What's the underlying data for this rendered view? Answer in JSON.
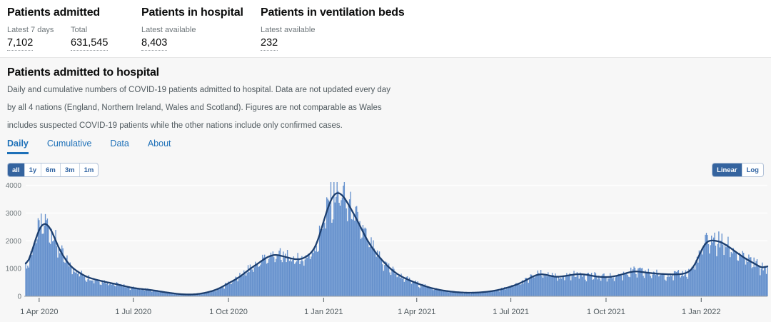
{
  "colors": {
    "page_background": "#ffffff",
    "panel_background": "#f7f7f7",
    "accent_blue": "#1d70b8",
    "button_active_bg": "#35649f",
    "bar": "#5e8bc9",
    "bar_light": "#8fb0dd",
    "line": "#1c3e6e"
  },
  "stats": {
    "cards": [
      {
        "title": "Patients admitted",
        "metrics": [
          {
            "label": "Latest 7 days",
            "value": "7,102"
          },
          {
            "label": "Total",
            "value": "631,545"
          }
        ]
      },
      {
        "title": "Patients in hospital",
        "metrics": [
          {
            "label": "Latest available",
            "value": "8,403"
          }
        ]
      },
      {
        "title": "Patients in ventilation beds",
        "metrics": [
          {
            "label": "Latest available",
            "value": "232"
          }
        ]
      }
    ]
  },
  "section": {
    "title": "Patients admitted to hospital",
    "description": "Daily and cumulative numbers of COVID-19 patients admitted to hospital. Data are not updated every day by all 4 nations (England, Northern Ireland, Wales and Scotland). Figures are not comparable as Wales includes suspected COVID-19 patients while the other nations include only confirmed cases.",
    "tabs": [
      {
        "label": "Daily",
        "active": true
      },
      {
        "label": "Cumulative",
        "active": false
      },
      {
        "label": "Data",
        "active": false
      },
      {
        "label": "About",
        "active": false
      }
    ],
    "range_buttons": [
      {
        "label": "all",
        "active": true
      },
      {
        "label": "1y",
        "active": false
      },
      {
        "label": "6m",
        "active": false
      },
      {
        "label": "3m",
        "active": false
      },
      {
        "label": "1m",
        "active": false
      }
    ],
    "scale_buttons": [
      {
        "label": "Linear",
        "active": true
      },
      {
        "label": "Log",
        "active": false
      }
    ]
  },
  "chart_data": {
    "type": "bar",
    "title": "Daily",
    "ylim": [
      0,
      4000
    ],
    "yticks": [
      0,
      1000,
      2000,
      3000,
      4000
    ],
    "date_range": [
      "2020-03-19",
      "2022-03-06"
    ],
    "x_ticks": [
      {
        "date": "2020-04-01",
        "label": "1 Apr 2020"
      },
      {
        "date": "2020-07-01",
        "label": "1 Jul 2020"
      },
      {
        "date": "2020-10-01",
        "label": "1 Oct 2020"
      },
      {
        "date": "2021-01-01",
        "label": "1 Jan 2021"
      },
      {
        "date": "2021-04-01",
        "label": "1 Apr 2021"
      },
      {
        "date": "2021-07-01",
        "label": "1 Jul 2021"
      },
      {
        "date": "2021-10-01",
        "label": "1 Oct 2021"
      },
      {
        "date": "2022-01-01",
        "label": "1 Jan 2022"
      }
    ],
    "series": [
      {
        "name": "daily-admissions",
        "type": "bar"
      },
      {
        "name": "7-day-rolling-average",
        "type": "line",
        "points": [
          [
            "2020-03-19",
            1050
          ],
          [
            "2020-03-23",
            1400
          ],
          [
            "2020-03-27",
            1850
          ],
          [
            "2020-03-31",
            2350
          ],
          [
            "2020-04-04",
            2600
          ],
          [
            "2020-04-07",
            2650
          ],
          [
            "2020-04-10",
            2550
          ],
          [
            "2020-04-14",
            2300
          ],
          [
            "2020-04-18",
            1900
          ],
          [
            "2020-04-22",
            1600
          ],
          [
            "2020-04-26",
            1350
          ],
          [
            "2020-04-30",
            1150
          ],
          [
            "2020-05-04",
            1000
          ],
          [
            "2020-05-08",
            900
          ],
          [
            "2020-05-12",
            800
          ],
          [
            "2020-05-16",
            720
          ],
          [
            "2020-05-20",
            660
          ],
          [
            "2020-05-24",
            620
          ],
          [
            "2020-05-28",
            580
          ],
          [
            "2020-06-01",
            545
          ],
          [
            "2020-06-05",
            510
          ],
          [
            "2020-06-09",
            480
          ],
          [
            "2020-06-13",
            450
          ],
          [
            "2020-06-17",
            415
          ],
          [
            "2020-06-21",
            380
          ],
          [
            "2020-06-25",
            345
          ],
          [
            "2020-06-29",
            315
          ],
          [
            "2020-07-03",
            290
          ],
          [
            "2020-07-07",
            270
          ],
          [
            "2020-07-11",
            255
          ],
          [
            "2020-07-15",
            240
          ],
          [
            "2020-07-19",
            220
          ],
          [
            "2020-07-23",
            200
          ],
          [
            "2020-07-27",
            175
          ],
          [
            "2020-07-31",
            150
          ],
          [
            "2020-08-04",
            130
          ],
          [
            "2020-08-08",
            110
          ],
          [
            "2020-08-12",
            90
          ],
          [
            "2020-08-16",
            75
          ],
          [
            "2020-08-20",
            68
          ],
          [
            "2020-08-24",
            65
          ],
          [
            "2020-08-28",
            68
          ],
          [
            "2020-09-01",
            80
          ],
          [
            "2020-09-05",
            100
          ],
          [
            "2020-09-09",
            130
          ],
          [
            "2020-09-13",
            165
          ],
          [
            "2020-09-17",
            210
          ],
          [
            "2020-09-21",
            270
          ],
          [
            "2020-09-25",
            340
          ],
          [
            "2020-09-29",
            430
          ],
          [
            "2020-10-03",
            510
          ],
          [
            "2020-10-07",
            590
          ],
          [
            "2020-10-11",
            680
          ],
          [
            "2020-10-15",
            790
          ],
          [
            "2020-10-19",
            910
          ],
          [
            "2020-10-23",
            1020
          ],
          [
            "2020-10-27",
            1120
          ],
          [
            "2020-10-31",
            1220
          ],
          [
            "2020-11-04",
            1330
          ],
          [
            "2020-11-08",
            1420
          ],
          [
            "2020-11-12",
            1480
          ],
          [
            "2020-11-16",
            1500
          ],
          [
            "2020-11-20",
            1470
          ],
          [
            "2020-11-24",
            1430
          ],
          [
            "2020-11-28",
            1390
          ],
          [
            "2020-12-02",
            1350
          ],
          [
            "2020-12-06",
            1330
          ],
          [
            "2020-12-10",
            1340
          ],
          [
            "2020-12-14",
            1400
          ],
          [
            "2020-12-18",
            1500
          ],
          [
            "2020-12-22",
            1650
          ],
          [
            "2020-12-26",
            1950
          ],
          [
            "2020-12-30",
            2450
          ],
          [
            "2021-01-03",
            2950
          ],
          [
            "2021-01-07",
            3400
          ],
          [
            "2021-01-11",
            3680
          ],
          [
            "2021-01-14",
            3750
          ],
          [
            "2021-01-18",
            3700
          ],
          [
            "2021-01-22",
            3500
          ],
          [
            "2021-01-26",
            3250
          ],
          [
            "2021-01-30",
            2980
          ],
          [
            "2021-02-03",
            2700
          ],
          [
            "2021-02-07",
            2400
          ],
          [
            "2021-02-11",
            2100
          ],
          [
            "2021-02-15",
            1850
          ],
          [
            "2021-02-19",
            1640
          ],
          [
            "2021-02-23",
            1450
          ],
          [
            "2021-02-27",
            1280
          ],
          [
            "2021-03-03",
            1120
          ],
          [
            "2021-03-07",
            980
          ],
          [
            "2021-03-11",
            860
          ],
          [
            "2021-03-15",
            760
          ],
          [
            "2021-03-19",
            680
          ],
          [
            "2021-03-23",
            610
          ],
          [
            "2021-03-27",
            545
          ],
          [
            "2021-03-31",
            490
          ],
          [
            "2021-04-04",
            430
          ],
          [
            "2021-04-08",
            380
          ],
          [
            "2021-04-12",
            330
          ],
          [
            "2021-04-16",
            290
          ],
          [
            "2021-04-20",
            255
          ],
          [
            "2021-04-24",
            225
          ],
          [
            "2021-04-28",
            200
          ],
          [
            "2021-05-02",
            180
          ],
          [
            "2021-05-06",
            162
          ],
          [
            "2021-05-10",
            148
          ],
          [
            "2021-05-14",
            138
          ],
          [
            "2021-05-18",
            130
          ],
          [
            "2021-05-22",
            128
          ],
          [
            "2021-05-26",
            130
          ],
          [
            "2021-05-30",
            136
          ],
          [
            "2021-06-03",
            146
          ],
          [
            "2021-06-07",
            160
          ],
          [
            "2021-06-11",
            178
          ],
          [
            "2021-06-15",
            200
          ],
          [
            "2021-06-19",
            230
          ],
          [
            "2021-06-23",
            265
          ],
          [
            "2021-06-27",
            305
          ],
          [
            "2021-07-01",
            350
          ],
          [
            "2021-07-05",
            400
          ],
          [
            "2021-07-09",
            460
          ],
          [
            "2021-07-13",
            530
          ],
          [
            "2021-07-17",
            610
          ],
          [
            "2021-07-21",
            690
          ],
          [
            "2021-07-25",
            760
          ],
          [
            "2021-07-29",
            800
          ],
          [
            "2021-08-02",
            790
          ],
          [
            "2021-08-06",
            760
          ],
          [
            "2021-08-10",
            720
          ],
          [
            "2021-08-14",
            700
          ],
          [
            "2021-08-18",
            710
          ],
          [
            "2021-08-22",
            730
          ],
          [
            "2021-08-26",
            755
          ],
          [
            "2021-08-30",
            780
          ],
          [
            "2021-09-03",
            800
          ],
          [
            "2021-09-07",
            800
          ],
          [
            "2021-09-11",
            785
          ],
          [
            "2021-09-15",
            760
          ],
          [
            "2021-09-19",
            730
          ],
          [
            "2021-09-23",
            705
          ],
          [
            "2021-09-27",
            695
          ],
          [
            "2021-10-01",
            690
          ],
          [
            "2021-10-05",
            700
          ],
          [
            "2021-10-09",
            720
          ],
          [
            "2021-10-13",
            755
          ],
          [
            "2021-10-17",
            795
          ],
          [
            "2021-10-21",
            840
          ],
          [
            "2021-10-25",
            880
          ],
          [
            "2021-10-29",
            900
          ],
          [
            "2021-11-02",
            890
          ],
          [
            "2021-11-06",
            870
          ],
          [
            "2021-11-10",
            850
          ],
          [
            "2021-11-14",
            835
          ],
          [
            "2021-11-18",
            820
          ],
          [
            "2021-11-22",
            810
          ],
          [
            "2021-11-26",
            800
          ],
          [
            "2021-11-30",
            795
          ],
          [
            "2021-12-04",
            790
          ],
          [
            "2021-12-08",
            790
          ],
          [
            "2021-12-12",
            800
          ],
          [
            "2021-12-16",
            820
          ],
          [
            "2021-12-20",
            880
          ],
          [
            "2021-12-24",
            1020
          ],
          [
            "2021-12-28",
            1300
          ],
          [
            "2022-01-01",
            1650
          ],
          [
            "2022-01-05",
            1920
          ],
          [
            "2022-01-09",
            2020
          ],
          [
            "2022-01-13",
            2010
          ],
          [
            "2022-01-17",
            1990
          ],
          [
            "2022-01-21",
            1940
          ],
          [
            "2022-01-25",
            1850
          ],
          [
            "2022-01-29",
            1750
          ],
          [
            "2022-02-02",
            1640
          ],
          [
            "2022-02-06",
            1530
          ],
          [
            "2022-02-10",
            1430
          ],
          [
            "2022-02-14",
            1330
          ],
          [
            "2022-02-18",
            1250
          ],
          [
            "2022-02-22",
            1170
          ],
          [
            "2022-02-26",
            1080
          ],
          [
            "2022-03-02",
            1010
          ],
          [
            "2022-03-05",
            1080
          ],
          [
            "2022-03-06",
            1150
          ]
        ]
      }
    ]
  }
}
